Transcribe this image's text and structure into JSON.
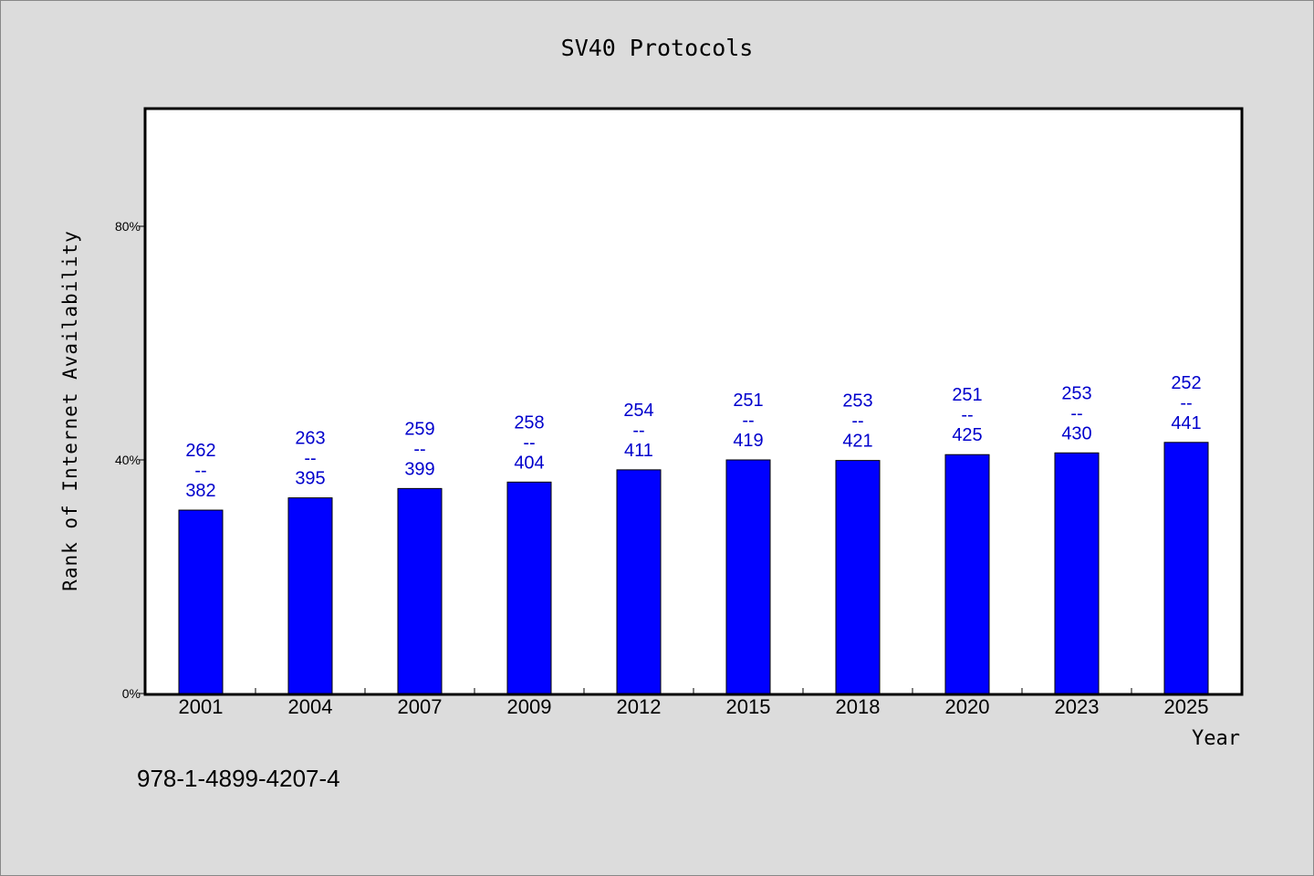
{
  "chart_data": {
    "type": "bar",
    "title": "SV40 Protocols",
    "xlabel": "Year",
    "ylabel": "Rank of Internet Availability",
    "categories": [
      "2001",
      "2004",
      "2007",
      "2009",
      "2012",
      "2015",
      "2018",
      "2020",
      "2023",
      "2025"
    ],
    "series": [
      {
        "values": [
          31.4,
          33.5,
          35.1,
          36.2,
          38.3,
          40.0,
          39.9,
          40.9,
          41.2,
          43.0
        ]
      }
    ],
    "data_labels": [
      {
        "top": "262",
        "sep": "--",
        "bottom": "382"
      },
      {
        "top": "263",
        "sep": "--",
        "bottom": "395"
      },
      {
        "top": "259",
        "sep": "--",
        "bottom": "399"
      },
      {
        "top": "258",
        "sep": "--",
        "bottom": "404"
      },
      {
        "top": "254",
        "sep": "--",
        "bottom": "411"
      },
      {
        "top": "251",
        "sep": "--",
        "bottom": "419"
      },
      {
        "top": "253",
        "sep": "--",
        "bottom": "421"
      },
      {
        "top": "251",
        "sep": "--",
        "bottom": "425"
      },
      {
        "top": "253",
        "sep": "--",
        "bottom": "430"
      },
      {
        "top": "252",
        "sep": "--",
        "bottom": "441"
      }
    ],
    "ylim": [
      0,
      100
    ],
    "yticks": [
      {
        "value": 0,
        "label": "0%"
      },
      {
        "value": 40,
        "label": "40%"
      },
      {
        "value": 80,
        "label": "80%"
      }
    ],
    "grid": false,
    "legend": "none",
    "colors": {
      "bar": "#0000ff",
      "label": "#0000cc",
      "plot_bg": "#ffffff",
      "page_bg": "#dcdcdc"
    }
  },
  "footer": {
    "text": "978-1-4899-4207-4"
  }
}
